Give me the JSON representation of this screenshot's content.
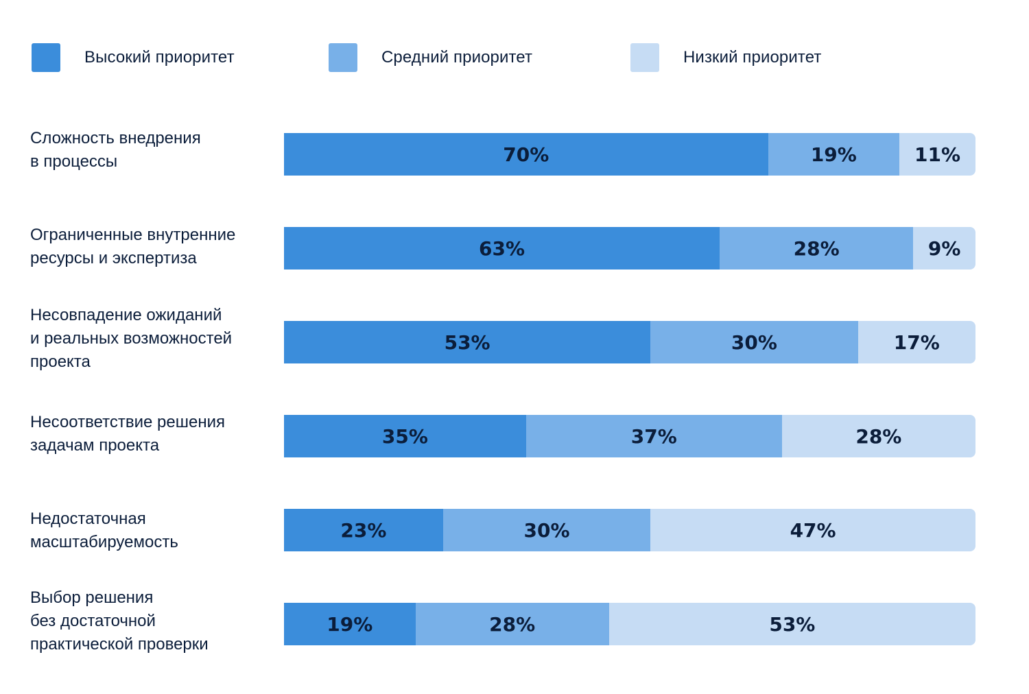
{
  "colors": {
    "high": "#3b8ddb",
    "medium": "#78b0e8",
    "low": "#c6dcf4"
  },
  "legend": [
    {
      "label": "Высокий приоритет",
      "color": "#3b8ddb"
    },
    {
      "label": "Средний приоритет",
      "color": "#78b0e8"
    },
    {
      "label": "Низкий приоритет",
      "color": "#c6dcf4"
    }
  ],
  "chart_data": {
    "type": "bar",
    "orientation": "horizontal",
    "stacked": true,
    "categories": [
      "Сложность внедрения\nв процессы",
      "Ограниченные внутренние\nресурсы и экспертиза",
      "Несовпадение ожиданий\nи реальных возможностей\nпроекта",
      "Несоответствие решения\nзадачам проекта",
      "Недостаточная\nмасштабируемость",
      "Выбор решения\nбез достаточной\nпрактической проверки"
    ],
    "series": [
      {
        "name": "Высокий приоритет",
        "values": [
          70,
          63,
          53,
          35,
          23,
          19
        ]
      },
      {
        "name": "Средний приоритет",
        "values": [
          19,
          28,
          30,
          37,
          30,
          28
        ]
      },
      {
        "name": "Низкий приоритет",
        "values": [
          11,
          9,
          17,
          28,
          47,
          53
        ]
      }
    ],
    "data_labels": [
      [
        "70%",
        "19%",
        "11%"
      ],
      [
        "63%",
        "28%",
        "9%"
      ],
      [
        "53%",
        "30%",
        "17%"
      ],
      [
        "35%",
        "37%",
        "28%"
      ],
      [
        "23%",
        "30%",
        "47%"
      ],
      [
        "19%",
        "28%",
        "53%"
      ]
    ],
    "xlim": [
      0,
      100
    ],
    "legend_position": "top",
    "grid": false
  }
}
